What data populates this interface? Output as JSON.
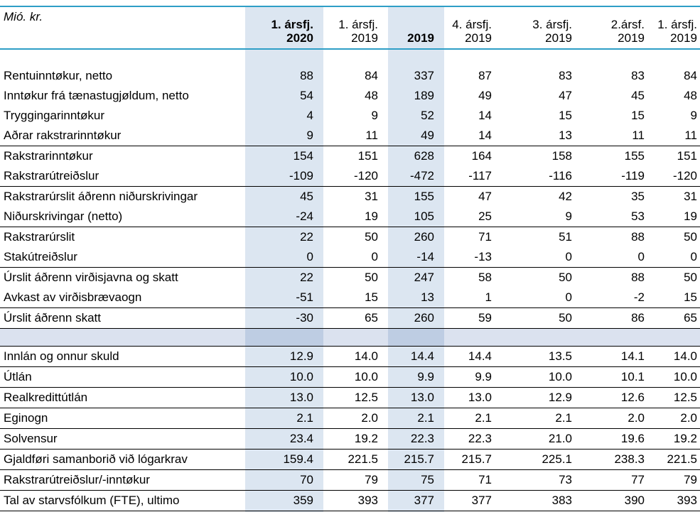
{
  "colors": {
    "accent_line": "#2e9ec6",
    "column_highlight": "#dce6f1",
    "spacer_fill": "rgba(53,93,169,0.18)",
    "divider_line": "#000000"
  },
  "table": {
    "unit_label": "Mió. kr.",
    "columns": [
      {
        "line1": "1. ársfj.",
        "line2": "2020",
        "bold": true,
        "highlighted": true
      },
      {
        "line1": "1. ársfj.",
        "line2": "2019",
        "bold": false,
        "highlighted": false
      },
      {
        "line1": "",
        "line2": "2019",
        "bold": true,
        "highlighted": true
      },
      {
        "line1": "4. ársfj.",
        "line2": "2019",
        "bold": false,
        "highlighted": false
      },
      {
        "line1": "3. ársfj.",
        "line2": "2019",
        "bold": false,
        "highlighted": false
      },
      {
        "line1": "2.ársf.",
        "line2": "2019",
        "bold": false,
        "highlighted": false
      },
      {
        "line1": "1. ársfj.",
        "line2": "2019",
        "bold": false,
        "highlighted": false
      }
    ],
    "rows": [
      {
        "label": "Rentuinntøkur, netto",
        "values": [
          "88",
          "84",
          "337",
          "87",
          "83",
          "83",
          "84"
        ]
      },
      {
        "label": "Inntøkur frá tænastugjøldum, netto",
        "values": [
          "54",
          "48",
          "189",
          "49",
          "47",
          "45",
          "48"
        ]
      },
      {
        "label": "Tryggingarinntøkur",
        "values": [
          "4",
          "9",
          "52",
          "14",
          "15",
          "15",
          "9"
        ]
      },
      {
        "label": "Aðrar rakstrarinntøkur",
        "values": [
          "9",
          "11",
          "49",
          "14",
          "13",
          "11",
          "11"
        ],
        "divider_after": true
      },
      {
        "label": "Rakstrarinntøkur",
        "values": [
          "154",
          "151",
          "628",
          "164",
          "158",
          "155",
          "151"
        ]
      },
      {
        "label": "Rakstrarútreiðslur",
        "values": [
          "-109",
          "-120",
          "-472",
          "-117",
          "-116",
          "-119",
          "-120"
        ],
        "divider_after": true
      },
      {
        "label": "Rakstrarúrslit áðrenn niðurskrivingar",
        "values": [
          "45",
          "31",
          "155",
          "47",
          "42",
          "35",
          "31"
        ]
      },
      {
        "label": "Niðurskrivingar (netto)",
        "values": [
          "-24",
          "19",
          "105",
          "25",
          "9",
          "53",
          "19"
        ],
        "divider_after": true
      },
      {
        "label": "Rakstrarúrslit",
        "values": [
          "22",
          "50",
          "260",
          "71",
          "51",
          "88",
          "50"
        ]
      },
      {
        "label": "Stakútreiðslur",
        "values": [
          "0",
          "0",
          "-14",
          "-13",
          "0",
          "0",
          "0"
        ],
        "divider_after": true
      },
      {
        "label": "Úrslit áðrenn virðisjavna og skatt",
        "values": [
          "22",
          "50",
          "247",
          "58",
          "50",
          "88",
          "50"
        ]
      },
      {
        "label": "Avkast av virðisbrævaogn",
        "values": [
          "-51",
          "15",
          "13",
          "1",
          "0",
          "-2",
          "15"
        ],
        "divider_after": true
      },
      {
        "label": "Úrslit áðrenn skatt",
        "values": [
          "-30",
          "65",
          "260",
          "59",
          "50",
          "86",
          "65"
        ],
        "divider_after": true
      },
      {
        "type": "spacer",
        "divider_after": true
      },
      {
        "label": "Innlán og onnur skuld",
        "values": [
          "12.9",
          "14.0",
          "14.4",
          "14.4",
          "13.5",
          "14.1",
          "14.0"
        ],
        "divider_after": true
      },
      {
        "label": "Útlán",
        "values": [
          "10.0",
          "10.0",
          "9.9",
          "9.9",
          "10.0",
          "10.1",
          "10.0"
        ],
        "divider_after": true
      },
      {
        "label": "Realkredittútlán",
        "values": [
          "13.0",
          "12.5",
          "13.0",
          "13.0",
          "12.9",
          "12.6",
          "12.5"
        ],
        "divider_after": true
      },
      {
        "label": "Eginogn",
        "values": [
          "2.1",
          "2.0",
          "2.1",
          "2.1",
          "2.1",
          "2.0",
          "2.0"
        ],
        "divider_after": true
      },
      {
        "label": "Solvensur",
        "values": [
          "23.4",
          "19.2",
          "22.3",
          "22.3",
          "21.0",
          "19.6",
          "19.2"
        ],
        "divider_after": true
      },
      {
        "label": "Gjaldføri samanborið við lógarkrav",
        "values": [
          "159.4",
          "221.5",
          "215.7",
          "215.7",
          "225.1",
          "238.3",
          "221.5"
        ],
        "divider_after": true
      },
      {
        "label": "Rakstrarútreiðslur/-inntøkur",
        "values": [
          "70",
          "79",
          "75",
          "71",
          "73",
          "77",
          "79"
        ],
        "divider_after": true
      },
      {
        "label": "Tal av starvsfólkum (FTE), ultimo",
        "values": [
          "359",
          "393",
          "377",
          "377",
          "383",
          "390",
          "393"
        ],
        "divider_after": true
      }
    ]
  }
}
